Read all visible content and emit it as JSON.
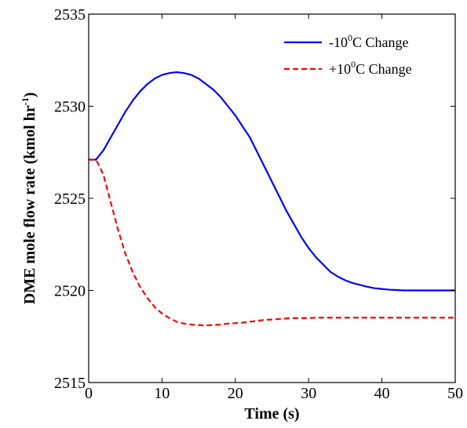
{
  "chart_data": {
    "type": "line",
    "xlabel": "Time (s)",
    "ylabel": {
      "main": "DME mole flow rate (kmol hr",
      "superscript": "-1",
      "close": ")"
    },
    "xlim": [
      0,
      50
    ],
    "ylim": [
      2515,
      2535
    ],
    "xticks": [
      "0",
      "10",
      "20",
      "30",
      "40",
      "50"
    ],
    "yticks": [
      "2515",
      "2520",
      "2525",
      "2530",
      "2535"
    ],
    "grid": false,
    "legend_position": "top-right",
    "series": [
      {
        "name_parts": {
          "pre": "-10",
          "sup": "0",
          "post": "C Change"
        },
        "color": "#0000ff",
        "style": "solid",
        "x": [
          0,
          1,
          2,
          3,
          4,
          5,
          6,
          7,
          8,
          9,
          10,
          11,
          12,
          13,
          14,
          15,
          16,
          17,
          18,
          19,
          20,
          21,
          22,
          23,
          24,
          25,
          26,
          27,
          28,
          29,
          30,
          31,
          32,
          33,
          34,
          35,
          36,
          37,
          38,
          39,
          40,
          41,
          42,
          43,
          44,
          45,
          46,
          47,
          48,
          49,
          50
        ],
        "y": [
          2527.1,
          2527.1,
          2527.6,
          2528.3,
          2529.0,
          2529.7,
          2530.3,
          2530.8,
          2531.2,
          2531.5,
          2531.7,
          2531.8,
          2531.85,
          2531.8,
          2531.7,
          2531.5,
          2531.2,
          2530.9,
          2530.5,
          2530.0,
          2529.5,
          2528.9,
          2528.3,
          2527.5,
          2526.7,
          2525.9,
          2525.1,
          2524.3,
          2523.6,
          2522.9,
          2522.3,
          2521.8,
          2521.4,
          2521.0,
          2520.75,
          2520.55,
          2520.4,
          2520.3,
          2520.2,
          2520.12,
          2520.08,
          2520.04,
          2520.02,
          2520.0,
          2520.0,
          2520.0,
          2520.0,
          2520.0,
          2520.0,
          2520.0,
          2520.0
        ]
      },
      {
        "name_parts": {
          "pre": "+10",
          "sup": "0",
          "post": "C Change"
        },
        "color": "#ff0000",
        "style": "dashed",
        "x": [
          0,
          1,
          2,
          3,
          4,
          5,
          6,
          7,
          8,
          9,
          10,
          11,
          12,
          13,
          14,
          15,
          16,
          17,
          18,
          19,
          20,
          21,
          22,
          23,
          24,
          25,
          26,
          27,
          28,
          29,
          30,
          31,
          32,
          33,
          34,
          35,
          36,
          37,
          38,
          39,
          40,
          41,
          42,
          43,
          44,
          45,
          46,
          47,
          48,
          49,
          50
        ],
        "y": [
          2527.1,
          2527.1,
          2526.3,
          2524.8,
          2523.3,
          2522.0,
          2521.0,
          2520.2,
          2519.6,
          2519.1,
          2518.75,
          2518.5,
          2518.3,
          2518.2,
          2518.15,
          2518.12,
          2518.1,
          2518.12,
          2518.15,
          2518.2,
          2518.22,
          2518.25,
          2518.3,
          2518.35,
          2518.4,
          2518.42,
          2518.45,
          2518.48,
          2518.5,
          2518.5,
          2518.5,
          2518.52,
          2518.52,
          2518.52,
          2518.52,
          2518.52,
          2518.52,
          2518.52,
          2518.52,
          2518.52,
          2518.52,
          2518.52,
          2518.52,
          2518.52,
          2518.52,
          2518.52,
          2518.52,
          2518.52,
          2518.52,
          2518.52,
          2518.52
        ]
      }
    ]
  }
}
